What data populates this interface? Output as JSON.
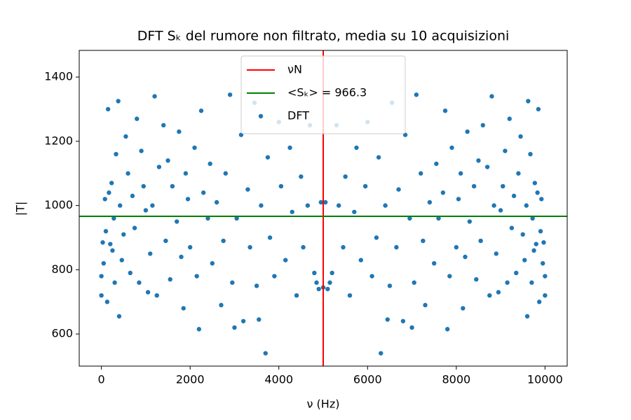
{
  "chart_data": {
    "type": "scatter",
    "title": "DFT Sₖ del rumore non filtrato, media su 10 acquisizioni",
    "xlabel": "ν (Hz)",
    "ylabel": "|T|",
    "xlim": [
      -500,
      10500
    ],
    "ylim": [
      500,
      1483
    ],
    "xticks": [
      0,
      2000,
      4000,
      6000,
      8000,
      10000
    ],
    "yticks": [
      600,
      800,
      1000,
      1200,
      1400
    ],
    "legend": "upper center",
    "vlines": [
      {
        "name": "νN",
        "value": 5000,
        "color": "#ff0000"
      }
    ],
    "hlines": [
      {
        "name": "<Sₖ> = 966.3",
        "value": 966.3,
        "color": "#008000"
      }
    ],
    "series": [
      {
        "name": "DFT",
        "color": "#1f77b4",
        "x": [
          0,
          0,
          30,
          50,
          80,
          100,
          130,
          150,
          170,
          200,
          230,
          250,
          280,
          300,
          330,
          380,
          400,
          420,
          460,
          500,
          550,
          600,
          650,
          700,
          750,
          800,
          850,
          900,
          950,
          1000,
          1050,
          1100,
          1150,
          1200,
          1250,
          1300,
          1400,
          1450,
          1500,
          1550,
          1600,
          1700,
          1750,
          1800,
          1850,
          1900,
          1950,
          2000,
          2100,
          2150,
          2200,
          2250,
          2300,
          2400,
          2450,
          2500,
          2600,
          2700,
          2750,
          2800,
          2900,
          2950,
          3000,
          3050,
          3150,
          3200,
          3300,
          3350,
          3450,
          3500,
          3550,
          3600,
          3700,
          3750,
          3800,
          3900,
          4000,
          4050,
          4150,
          4250,
          4300,
          4400,
          4500,
          4550,
          4650,
          4700,
          4800,
          4850,
          4900,
          4950,
          5000,
          5050,
          5100,
          5150,
          5200,
          5300,
          5350,
          5450,
          5500,
          5600,
          5700,
          5750,
          5850,
          5950,
          6000,
          6100,
          6200,
          6250,
          6300,
          6400,
          6450,
          6500,
          6550,
          6650,
          6700,
          6800,
          6850,
          6950,
          7000,
          7050,
          7100,
          7200,
          7250,
          7300,
          7400,
          7500,
          7550,
          7600,
          7700,
          7750,
          7800,
          7850,
          7900,
          8000,
          8050,
          8100,
          8150,
          8200,
          8250,
          8300,
          8400,
          8450,
          8500,
          8550,
          8600,
          8700,
          8750,
          8800,
          8850,
          8900,
          8950,
          9000,
          9050,
          9100,
          9150,
          9200,
          9250,
          9300,
          9350,
          9400,
          9450,
          9500,
          9540,
          9580,
          9600,
          9620,
          9670,
          9700,
          9720,
          9750,
          9770,
          9800,
          9830,
          9850,
          9870,
          9900,
          9920,
          9950,
          9970,
          10000,
          10000
        ],
        "values": [
          780,
          720,
          885,
          820,
          1020,
          920,
          700,
          1300,
          1040,
          880,
          1070,
          860,
          960,
          760,
          1160,
          1325,
          655,
          1000,
          830,
          910,
          1215,
          1100,
          790,
          1030,
          930,
          1270,
          760,
          1170,
          1060,
          985,
          730,
          850,
          1000,
          1340,
          720,
          1120,
          1250,
          890,
          1140,
          770,
          1060,
          950,
          1230,
          840,
          680,
          1100,
          1020,
          870,
          1180,
          780,
          615,
          1295,
          1040,
          960,
          1130,
          820,
          1010,
          690,
          890,
          1100,
          1345,
          760,
          620,
          960,
          1220,
          640,
          1050,
          870,
          1320,
          750,
          645,
          1000,
          540,
          1150,
          900,
          780,
          1260,
          1060,
          830,
          1180,
          980,
          720,
          1090,
          870,
          1000,
          1250,
          790,
          760,
          740,
          1010,
          745,
          1010,
          740,
          760,
          790,
          1250,
          1000,
          870,
          1090,
          720,
          980,
          1180,
          830,
          1060,
          1260,
          780,
          900,
          1150,
          540,
          1000,
          645,
          750,
          1320,
          870,
          1050,
          640,
          1220,
          960,
          620,
          760,
          1345,
          1100,
          890,
          690,
          1010,
          820,
          1130,
          960,
          1040,
          1295,
          615,
          780,
          1180,
          870,
          1020,
          1100,
          680,
          840,
          1230,
          950,
          1060,
          770,
          1140,
          890,
          1250,
          1120,
          720,
          1340,
          1000,
          850,
          730,
          985,
          1060,
          1170,
          760,
          1270,
          930,
          1030,
          790,
          1100,
          1215,
          910,
          830,
          1000,
          655,
          1325,
          1160,
          760,
          960,
          860,
          1070,
          880,
          1040,
          1300,
          700,
          920,
          1020,
          820,
          885,
          720,
          780
        ]
      }
    ]
  }
}
